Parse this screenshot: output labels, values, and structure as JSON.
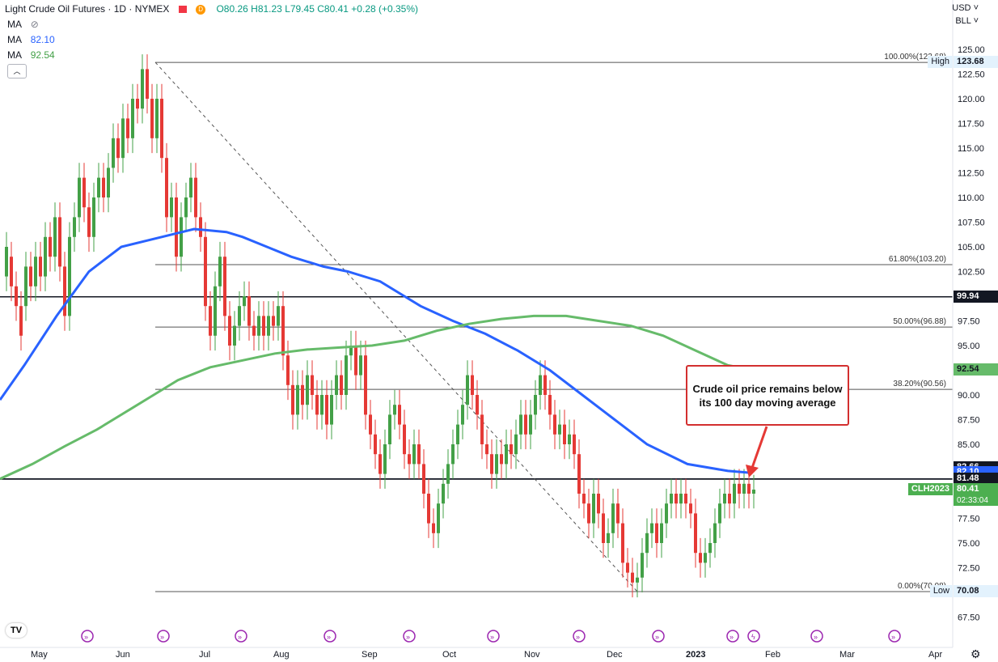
{
  "header": {
    "title": "Light Crude Oil Futures · 1D · NYMEX",
    "open": "O80.26",
    "high": "H81.23",
    "low": "L79.45",
    "close": "C80.41",
    "change": "+0.28 (+0.35%)",
    "ma1_label": "MA",
    "ma2_label": "MA",
    "ma2_value": "82.10",
    "ma3_label": "MA",
    "ma3_value": "92.54",
    "currency": "USD",
    "unit": "BLL"
  },
  "annotation": {
    "text": "Crude oil price remains below its 100 day moving average"
  },
  "chart_data": {
    "type": "candlestick",
    "ylim": [
      65.0,
      125.0
    ],
    "y_ticks": [
      67.5,
      70.0,
      72.5,
      75.0,
      77.5,
      80.0,
      82.5,
      85.0,
      87.5,
      90.0,
      92.5,
      95.0,
      97.5,
      100.0,
      102.5,
      105.0,
      107.5,
      110.0,
      112.5,
      115.0,
      117.5,
      120.0,
      122.5,
      125.0
    ],
    "y_tick_labels": [
      "67.50",
      "70.00",
      "72.50",
      "75.00",
      "77.50",
      "80.00",
      "",
      "85.00",
      "87.50",
      "90.00",
      "",
      "95.00",
      "97.50",
      "",
      "102.50",
      "105.00",
      "107.50",
      "110.00",
      "112.50",
      "115.00",
      "117.50",
      "120.00",
      "122.50",
      "125.00"
    ],
    "x_labels": [
      "May",
      "Jun",
      "Jul",
      "Aug",
      "Sep",
      "Oct",
      "Nov",
      "Dec",
      "2023",
      "Feb",
      "Mar",
      "Apr"
    ],
    "fib_levels": [
      {
        "label": "100.00%(123.68)",
        "value": 123.68
      },
      {
        "label": "61.80%(103.20)",
        "value": 103.2
      },
      {
        "label": "50.00%(96.88)",
        "value": 96.88
      },
      {
        "label": "38.20%(90.56)",
        "value": 90.56
      },
      {
        "label": "0.00%(70.08)",
        "value": 70.08
      }
    ],
    "horizontal_lines": [
      99.94,
      81.5,
      81.48
    ],
    "price_tags": [
      {
        "label": "High",
        "value": "123.68",
        "y": 123.68,
        "bg": "#e3f2fd",
        "fg": "#131722"
      },
      {
        "label": "",
        "value": "99.94",
        "y": 99.94,
        "bg": "#131722",
        "fg": "#ffffff"
      },
      {
        "label": "",
        "value": "92.54",
        "y": 92.54,
        "bg": "#66bb6a",
        "fg": "#131722"
      },
      {
        "label": "",
        "value": "82.66",
        "y": 82.66,
        "bg": "#131722",
        "fg": "#ffffff"
      },
      {
        "label": "",
        "value": "82.10",
        "y": 82.1,
        "bg": "#2962ff",
        "fg": "#ffffff"
      },
      {
        "label": "",
        "value": "81.50",
        "y": 81.5,
        "bg": "#131722",
        "fg": "#ffffff"
      },
      {
        "label": "",
        "value": "81.48",
        "y": 81.48,
        "bg": "#131722",
        "fg": "#ffffff"
      },
      {
        "label": "CLH2023",
        "value": "80.41",
        "y": 80.41,
        "bg": "#4caf50",
        "fg": "#ffffff"
      },
      {
        "label": "Low",
        "value": "70.08",
        "y": 70.08,
        "bg": "#e3f2fd",
        "fg": "#131722"
      }
    ],
    "countdown": "02:33:04",
    "series": [
      {
        "name": "MA 100",
        "color": "#2962ff"
      },
      {
        "name": "MA 200",
        "color": "#66bb6a"
      }
    ],
    "ma100_path": [
      [
        0,
        89.5
      ],
      [
        30,
        93
      ],
      [
        70,
        98
      ],
      [
        110,
        102.5
      ],
      [
        150,
        105
      ],
      [
        200,
        106
      ],
      [
        240,
        106.8
      ],
      [
        280,
        106.5
      ],
      [
        300,
        106.0
      ],
      [
        330,
        105
      ],
      [
        360,
        104
      ],
      [
        400,
        103
      ],
      [
        430,
        102.5
      ],
      [
        470,
        101.5
      ],
      [
        520,
        99
      ],
      [
        560,
        97.5
      ],
      [
        600,
        96.2
      ],
      [
        640,
        94.5
      ],
      [
        680,
        92.5
      ],
      [
        720,
        90
      ],
      [
        760,
        87.5
      ],
      [
        800,
        85
      ],
      [
        850,
        83
      ],
      [
        900,
        82.3
      ],
      [
        930,
        82.1
      ]
    ],
    "ma200_path": [
      [
        0,
        81.5
      ],
      [
        40,
        83
      ],
      [
        80,
        84.8
      ],
      [
        120,
        86.5
      ],
      [
        160,
        88.5
      ],
      [
        190,
        90
      ],
      [
        220,
        91.5
      ],
      [
        260,
        92.8
      ],
      [
        300,
        93.5
      ],
      [
        340,
        94.2
      ],
      [
        380,
        94.6
      ],
      [
        420,
        94.8
      ],
      [
        460,
        95
      ],
      [
        500,
        95.5
      ],
      [
        540,
        96.5
      ],
      [
        580,
        97.2
      ],
      [
        620,
        97.7
      ],
      [
        660,
        98
      ],
      [
        700,
        98
      ],
      [
        740,
        97.5
      ],
      [
        780,
        97
      ],
      [
        820,
        96
      ],
      [
        860,
        94.5
      ],
      [
        900,
        93
      ],
      [
        930,
        92.54
      ]
    ],
    "candles": [
      [
        8,
        102,
        105
      ],
      [
        14,
        104,
        101
      ],
      [
        20,
        101,
        99
      ],
      [
        26,
        99,
        96
      ],
      [
        32,
        99,
        103
      ],
      [
        38,
        103,
        101
      ],
      [
        44,
        101,
        104
      ],
      [
        50,
        104,
        102
      ],
      [
        56,
        102,
        106
      ],
      [
        62,
        106,
        104
      ],
      [
        68,
        104,
        108
      ],
      [
        74,
        108,
        103
      ],
      [
        80,
        103,
        98
      ],
      [
        86,
        98,
        106
      ],
      [
        92,
        106,
        108
      ],
      [
        98,
        108,
        112
      ],
      [
        104,
        112,
        109
      ],
      [
        110,
        109,
        106
      ],
      [
        116,
        106,
        110
      ],
      [
        122,
        110,
        112
      ],
      [
        128,
        112,
        110
      ],
      [
        134,
        110,
        113
      ],
      [
        140,
        113,
        116
      ],
      [
        146,
        116,
        114
      ],
      [
        152,
        114,
        118
      ],
      [
        158,
        118,
        116
      ],
      [
        164,
        116,
        120
      ],
      [
        170,
        120,
        119
      ],
      [
        176,
        119,
        123
      ],
      [
        182,
        123,
        120
      ],
      [
        188,
        120,
        116
      ],
      [
        194,
        116,
        120
      ],
      [
        200,
        120,
        114
      ],
      [
        206,
        114,
        108
      ],
      [
        212,
        108,
        110
      ],
      [
        218,
        110,
        104
      ],
      [
        224,
        104,
        108
      ],
      [
        230,
        108,
        110
      ],
      [
        236,
        110,
        112
      ],
      [
        242,
        112,
        108
      ],
      [
        248,
        108,
        106
      ],
      [
        254,
        106,
        99
      ],
      [
        260,
        99,
        96
      ],
      [
        266,
        96,
        101
      ],
      [
        272,
        101,
        104
      ],
      [
        278,
        104,
        98
      ],
      [
        284,
        98,
        95
      ],
      [
        290,
        95,
        97
      ],
      [
        296,
        97,
        99
      ],
      [
        302,
        99,
        100
      ],
      [
        308,
        100,
        97
      ],
      [
        314,
        97,
        96
      ],
      [
        320,
        96,
        98
      ],
      [
        326,
        98,
        96
      ],
      [
        332,
        96,
        98
      ],
      [
        338,
        98,
        97
      ],
      [
        344,
        97,
        99
      ],
      [
        350,
        99,
        94
      ],
      [
        356,
        94,
        91
      ],
      [
        362,
        91,
        88
      ],
      [
        368,
        88,
        91
      ],
      [
        374,
        91,
        89
      ],
      [
        380,
        89,
        92
      ],
      [
        386,
        92,
        90
      ],
      [
        392,
        90,
        88
      ],
      [
        398,
        88,
        90
      ],
      [
        404,
        90,
        87
      ],
      [
        410,
        87,
        90
      ],
      [
        416,
        90,
        92
      ],
      [
        422,
        92,
        90
      ],
      [
        428,
        90,
        94
      ],
      [
        434,
        94,
        95
      ],
      [
        440,
        95,
        92
      ],
      [
        446,
        92,
        94
      ],
      [
        452,
        94,
        88
      ],
      [
        458,
        88,
        86
      ],
      [
        464,
        86,
        84
      ],
      [
        470,
        84,
        82
      ],
      [
        476,
        82,
        85
      ],
      [
        482,
        85,
        88
      ],
      [
        488,
        88,
        89
      ],
      [
        494,
        89,
        87
      ],
      [
        500,
        87,
        84
      ],
      [
        506,
        84,
        83
      ],
      [
        512,
        83,
        85
      ],
      [
        518,
        85,
        83
      ],
      [
        524,
        83,
        80
      ],
      [
        530,
        80,
        77
      ],
      [
        536,
        77,
        76
      ],
      [
        542,
        76,
        79
      ],
      [
        548,
        79,
        81
      ],
      [
        554,
        81,
        83
      ],
      [
        560,
        83,
        85
      ],
      [
        566,
        85,
        87
      ],
      [
        572,
        87,
        89
      ],
      [
        578,
        89,
        92
      ],
      [
        584,
        92,
        90
      ],
      [
        590,
        90,
        88
      ],
      [
        596,
        88,
        85
      ],
      [
        602,
        85,
        84
      ],
      [
        608,
        84,
        82
      ],
      [
        614,
        82,
        84
      ],
      [
        620,
        84,
        83
      ],
      [
        626,
        83,
        85
      ],
      [
        632,
        85,
        84
      ],
      [
        638,
        84,
        86
      ],
      [
        644,
        86,
        88
      ],
      [
        650,
        88,
        86
      ],
      [
        656,
        86,
        88
      ],
      [
        662,
        88,
        90
      ],
      [
        668,
        90,
        92
      ],
      [
        674,
        92,
        90
      ],
      [
        680,
        90,
        88
      ],
      [
        686,
        88,
        86
      ],
      [
        692,
        86,
        87
      ],
      [
        698,
        87,
        85
      ],
      [
        704,
        85,
        86
      ],
      [
        710,
        86,
        84
      ],
      [
        716,
        84,
        80
      ],
      [
        722,
        80,
        79
      ],
      [
        728,
        79,
        77
      ],
      [
        734,
        77,
        80
      ],
      [
        740,
        80,
        78
      ],
      [
        746,
        78,
        75
      ],
      [
        752,
        75,
        76
      ],
      [
        758,
        76,
        79
      ],
      [
        764,
        79,
        77
      ],
      [
        770,
        77,
        73
      ],
      [
        776,
        73,
        72
      ],
      [
        782,
        72,
        71
      ],
      [
        788,
        71,
        71.5
      ],
      [
        794,
        71.5,
        74
      ],
      [
        800,
        74,
        76
      ],
      [
        806,
        76,
        77
      ],
      [
        812,
        77,
        75
      ],
      [
        818,
        75,
        77
      ],
      [
        824,
        77,
        79
      ],
      [
        830,
        79,
        80
      ],
      [
        836,
        80,
        79
      ],
      [
        842,
        79,
        80
      ],
      [
        848,
        80,
        79
      ],
      [
        854,
        79,
        78
      ],
      [
        860,
        78,
        74
      ],
      [
        866,
        74,
        73
      ],
      [
        872,
        73,
        74
      ],
      [
        878,
        74,
        75
      ],
      [
        884,
        75,
        77
      ],
      [
        890,
        77,
        79
      ],
      [
        896,
        79,
        80
      ],
      [
        902,
        80,
        79
      ],
      [
        908,
        79,
        81
      ],
      [
        914,
        81,
        80
      ],
      [
        920,
        80,
        81
      ],
      [
        926,
        81,
        80
      ],
      [
        932,
        80,
        80.41
      ]
    ]
  }
}
